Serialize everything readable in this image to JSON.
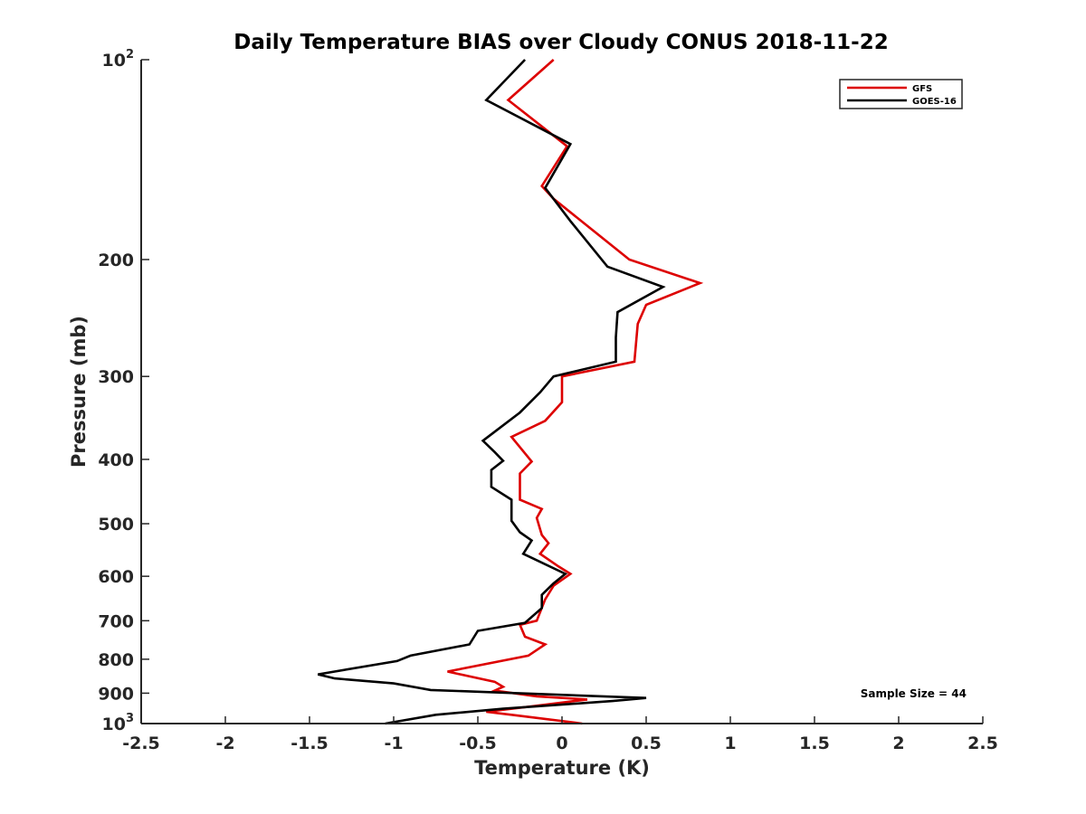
{
  "chart_data": {
    "type": "line",
    "title": "Daily Temperature BIAS over Cloudy CONUS 2018-11-22",
    "xlabel": "Temperature (K)",
    "ylabel": "Pressure (mb)",
    "xlim": [
      -2.5,
      2.5
    ],
    "ylim": [
      100,
      1000
    ],
    "y_scale": "log",
    "y_reversed": true,
    "grid": false,
    "legend_position": "top-right",
    "x_ticks": [
      -2.5,
      -2,
      -1.5,
      -1,
      -0.5,
      0,
      0.5,
      1,
      1.5,
      2,
      2.5
    ],
    "x_tick_labels": [
      "-2.5",
      "-2",
      "-1.5",
      "-1",
      "-0.5",
      "0",
      "0.5",
      "1",
      "1.5",
      "2",
      "2.5"
    ],
    "y_ticks": [
      {
        "value": 100,
        "label": "10",
        "sup": "2"
      },
      {
        "value": 200,
        "label": "200"
      },
      {
        "value": 300,
        "label": "300"
      },
      {
        "value": 400,
        "label": "400"
      },
      {
        "value": 500,
        "label": "500"
      },
      {
        "value": 600,
        "label": "600"
      },
      {
        "value": 700,
        "label": "700"
      },
      {
        "value": 800,
        "label": "800"
      },
      {
        "value": 900,
        "label": "900"
      },
      {
        "value": 1000,
        "label": "10",
        "sup": "3"
      }
    ],
    "annotation": "Sample Size = 44",
    "series": [
      {
        "name": "GFS",
        "color": "#dd0000",
        "points": [
          {
            "x": -0.05,
            "y": 100
          },
          {
            "x": -0.32,
            "y": 115
          },
          {
            "x": 0.03,
            "y": 135
          },
          {
            "x": -0.12,
            "y": 155
          },
          {
            "x": -0.05,
            "y": 162
          },
          {
            "x": 0.4,
            "y": 200
          },
          {
            "x": 0.82,
            "y": 217
          },
          {
            "x": 0.5,
            "y": 234
          },
          {
            "x": 0.45,
            "y": 250
          },
          {
            "x": 0.43,
            "y": 285
          },
          {
            "x": 0.0,
            "y": 300
          },
          {
            "x": 0.0,
            "y": 328
          },
          {
            "x": -0.1,
            "y": 350
          },
          {
            "x": -0.3,
            "y": 370
          },
          {
            "x": -0.18,
            "y": 403
          },
          {
            "x": -0.25,
            "y": 420
          },
          {
            "x": -0.25,
            "y": 460
          },
          {
            "x": -0.12,
            "y": 475
          },
          {
            "x": -0.15,
            "y": 490
          },
          {
            "x": -0.12,
            "y": 520
          },
          {
            "x": -0.08,
            "y": 535
          },
          {
            "x": -0.13,
            "y": 555
          },
          {
            "x": -0.02,
            "y": 580
          },
          {
            "x": 0.05,
            "y": 595
          },
          {
            "x": -0.05,
            "y": 620
          },
          {
            "x": -0.1,
            "y": 650
          },
          {
            "x": -0.15,
            "y": 700
          },
          {
            "x": -0.25,
            "y": 710
          },
          {
            "x": -0.22,
            "y": 740
          },
          {
            "x": -0.1,
            "y": 760
          },
          {
            "x": -0.2,
            "y": 790
          },
          {
            "x": -0.68,
            "y": 835
          },
          {
            "x": -0.4,
            "y": 865
          },
          {
            "x": -0.35,
            "y": 880
          },
          {
            "x": -0.4,
            "y": 892
          },
          {
            "x": -0.15,
            "y": 910
          },
          {
            "x": 0.15,
            "y": 920
          },
          {
            "x": -0.15,
            "y": 940
          },
          {
            "x": -0.45,
            "y": 960
          },
          {
            "x": -0.3,
            "y": 970
          },
          {
            "x": 0.12,
            "y": 1000
          }
        ]
      },
      {
        "name": "GOES-16",
        "color": "#000000",
        "points": [
          {
            "x": -0.22,
            "y": 100
          },
          {
            "x": -0.45,
            "y": 115
          },
          {
            "x": 0.05,
            "y": 134
          },
          {
            "x": -0.1,
            "y": 156
          },
          {
            "x": 0.05,
            "y": 175
          },
          {
            "x": 0.27,
            "y": 205
          },
          {
            "x": 0.6,
            "y": 220
          },
          {
            "x": 0.33,
            "y": 240
          },
          {
            "x": 0.32,
            "y": 262
          },
          {
            "x": 0.32,
            "y": 285
          },
          {
            "x": -0.05,
            "y": 300
          },
          {
            "x": -0.13,
            "y": 317
          },
          {
            "x": -0.25,
            "y": 340
          },
          {
            "x": -0.47,
            "y": 375
          },
          {
            "x": -0.4,
            "y": 390
          },
          {
            "x": -0.35,
            "y": 402
          },
          {
            "x": -0.42,
            "y": 415
          },
          {
            "x": -0.42,
            "y": 440
          },
          {
            "x": -0.3,
            "y": 460
          },
          {
            "x": -0.3,
            "y": 495
          },
          {
            "x": -0.25,
            "y": 515
          },
          {
            "x": -0.18,
            "y": 530
          },
          {
            "x": -0.23,
            "y": 555
          },
          {
            "x": 0.02,
            "y": 595
          },
          {
            "x": -0.05,
            "y": 615
          },
          {
            "x": -0.12,
            "y": 640
          },
          {
            "x": -0.12,
            "y": 670
          },
          {
            "x": -0.22,
            "y": 705
          },
          {
            "x": -0.5,
            "y": 725
          },
          {
            "x": -0.55,
            "y": 760
          },
          {
            "x": -0.9,
            "y": 790
          },
          {
            "x": -0.98,
            "y": 805
          },
          {
            "x": -1.45,
            "y": 843
          },
          {
            "x": -1.35,
            "y": 855
          },
          {
            "x": -1.0,
            "y": 870
          },
          {
            "x": -0.78,
            "y": 890
          },
          {
            "x": 0.5,
            "y": 915
          },
          {
            "x": 0.3,
            "y": 925
          },
          {
            "x": -0.35,
            "y": 950
          },
          {
            "x": -0.75,
            "y": 970
          },
          {
            "x": -1.05,
            "y": 1000
          }
        ]
      }
    ]
  }
}
